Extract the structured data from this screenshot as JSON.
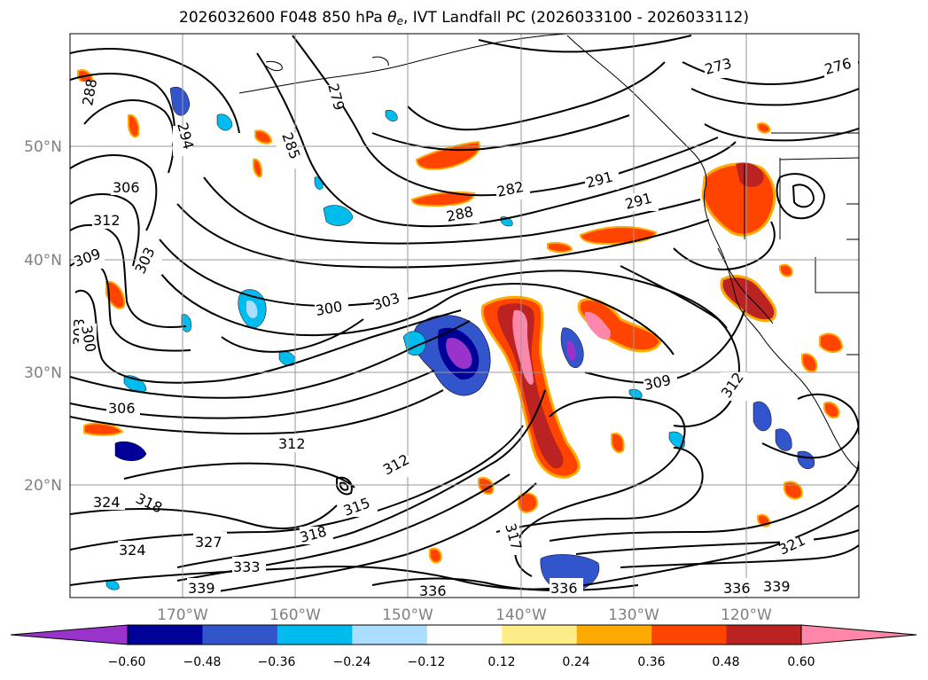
{
  "title": {
    "prefix": "2026032600 F048 850 hPa ",
    "theta": "θ",
    "sub": "e",
    "suffix": ", IVT Landfall PC (2026033100 - 2026033112)"
  },
  "lat_labels": [
    "50°N",
    "40°N",
    "30°N",
    "20°N"
  ],
  "lon_labels": [
    "170°W",
    "160°W",
    "150°W",
    "140°W",
    "130°W",
    "120°W"
  ],
  "colorbar": {
    "colors": [
      "#9933cc",
      "#000099",
      "#3355cc",
      "#00bbee",
      "#aaddff",
      "#ffffff",
      "#ffee88",
      "#ffaa00",
      "#ff4400",
      "#bb2222",
      "#ff88aa"
    ],
    "ticks": [
      "−0.60",
      "−0.48",
      "−0.36",
      "−0.24",
      "−0.12",
      "0.12",
      "0.24",
      "0.36",
      "0.48",
      "0.60"
    ],
    "extend_min_color": "#9933cc",
    "extend_max_color": "#ff88aa"
  },
  "contour_labels": [
    "288",
    "294",
    "279",
    "285",
    "306",
    "312",
    "309",
    "303",
    "303",
    "300",
    "306",
    "300",
    "303",
    "312",
    "282",
    "288",
    "291",
    "291",
    "273",
    "276",
    "309",
    "312",
    "324",
    "318",
    "327",
    "324",
    "333",
    "318",
    "315",
    "312",
    "339",
    "336",
    "336",
    "317",
    "336",
    "339",
    "321"
  ]
}
